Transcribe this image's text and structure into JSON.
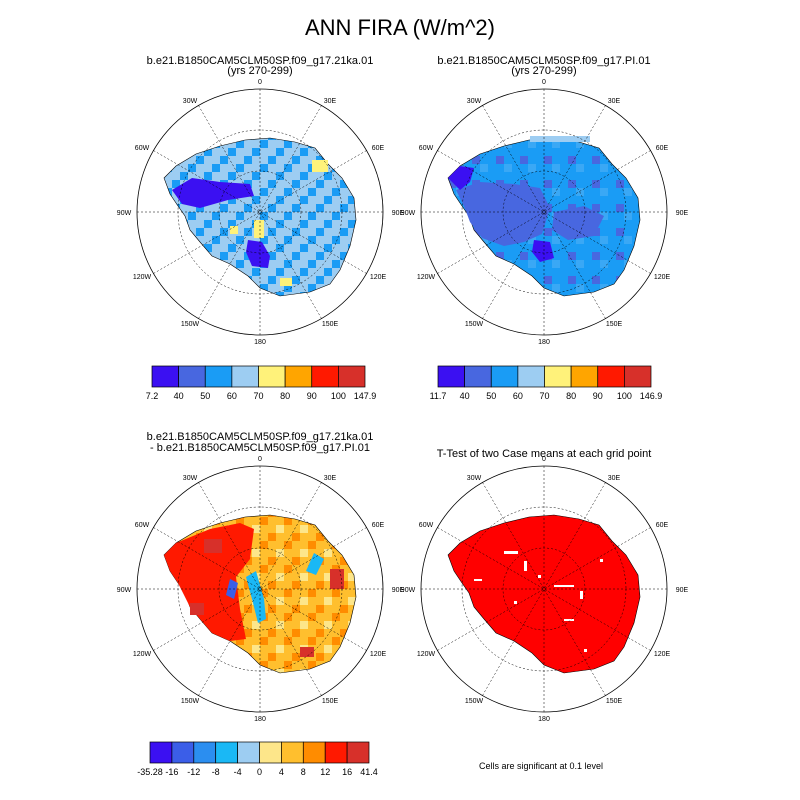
{
  "main_title": "ANN FIRA (W/m^2)",
  "longitude_labels": [
    "0",
    "30E",
    "60E",
    "90E",
    "120E",
    "150E",
    "180",
    "150W",
    "120W",
    "90W",
    "60W",
    "30W"
  ],
  "chart_data": [
    {
      "type": "heatmap",
      "projection": "south polar stereographic",
      "title": "b.e21.B1850CAM5CLM50SP.f09_g17.21ka.01",
      "subtitle": "(yrs 270-299)",
      "colorbar": {
        "colors": [
          "#3b10f2",
          "#4867e0",
          "#1a9cf5",
          "#9dcdf2",
          "#fff27a",
          "#ffa500",
          "#ff1900",
          "#d7302a"
        ],
        "labels": [
          "7.2",
          "40",
          "50",
          "60",
          "70",
          "80",
          "90",
          "100",
          "147.9"
        ]
      },
      "dominant_colors": [
        "#9dcdf2",
        "#1a9cf5",
        "#3b10f2",
        "#fff27a"
      ]
    },
    {
      "type": "heatmap",
      "projection": "south polar stereographic",
      "title": "b.e21.B1850CAM5CLM50SP.f09_g17.PI.01",
      "subtitle": "(yrs 270-299)",
      "colorbar": {
        "colors": [
          "#3b10f2",
          "#4867e0",
          "#1a9cf5",
          "#9dcdf2",
          "#fff27a",
          "#ffa500",
          "#ff1900",
          "#d7302a"
        ],
        "labels": [
          "11.7",
          "40",
          "50",
          "60",
          "70",
          "80",
          "90",
          "100",
          "146.9"
        ]
      },
      "dominant_colors": [
        "#1a9cf5",
        "#4867e0",
        "#3b10f2",
        "#9dcdf2"
      ]
    },
    {
      "type": "heatmap",
      "projection": "south polar stereographic",
      "title": "b.e21.B1850CAM5CLM50SP.f09_g17.21ka.01",
      "subtitle": "- b.e21.B1850CAM5CLM50SP.f09_g17.PI.01",
      "colorbar": {
        "colors": [
          "#3b10f2",
          "#3b5ee8",
          "#2b8ef0",
          "#1ab8f5",
          "#9dcdf2",
          "#fde68a",
          "#ffbf2e",
          "#ff8c00",
          "#ff1900",
          "#d7302a"
        ],
        "labels": [
          "-35.28",
          "-16",
          "-12",
          "-8",
          "-4",
          "0",
          "4",
          "8",
          "12",
          "16",
          "41.4"
        ]
      },
      "dominant_colors": [
        "#ffbf2e",
        "#ff8c00",
        "#ff1900",
        "#d7302a",
        "#fde68a"
      ]
    },
    {
      "type": "heatmap",
      "projection": "south polar stereographic",
      "title": "T-Test of two Case means at each grid point",
      "footnote": "Cells are significant at 0.1 level",
      "dominant_colors": [
        "#ff0000"
      ]
    }
  ]
}
